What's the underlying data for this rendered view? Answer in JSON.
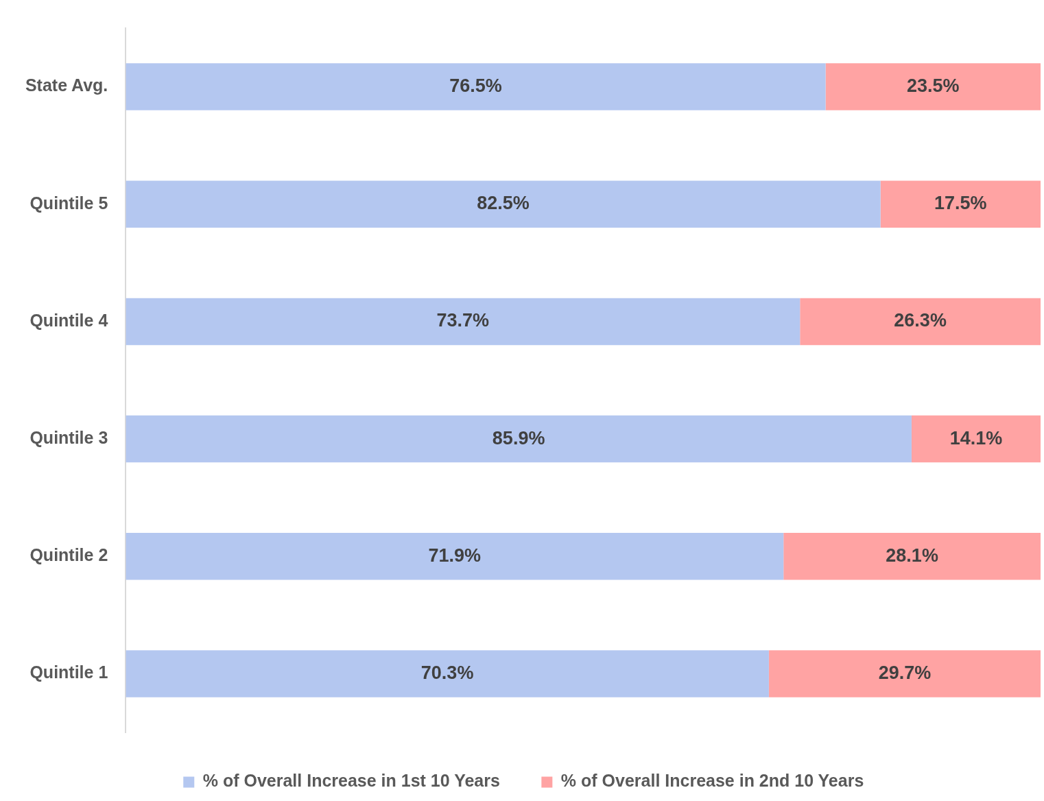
{
  "chart_data": {
    "type": "bar",
    "orientation": "horizontal",
    "stacked": true,
    "legend": "bottom",
    "grid": false,
    "categories": [
      "State Avg.",
      "Quintile 5",
      "Quintile 4",
      "Quintile 3",
      "Quintile 2",
      "Quintile 1"
    ],
    "series": [
      {
        "name": "% of Overall Increase in 1st 10 Years",
        "color": "#b4c7f0",
        "values": [
          76.5,
          82.5,
          73.7,
          85.9,
          71.9,
          70.3
        ],
        "value_labels": [
          "76.5%",
          "82.5%",
          "73.7%",
          "85.9%",
          "71.9%",
          "70.3%"
        ]
      },
      {
        "name": "% of Overall Increase in 2nd 10 Years",
        "color": "#ffa3a3",
        "values": [
          23.5,
          17.5,
          26.3,
          14.1,
          28.1,
          29.7
        ],
        "value_labels": [
          "23.5%",
          "17.5%",
          "26.3%",
          "14.1%",
          "28.1%",
          "29.7%"
        ]
      }
    ]
  }
}
